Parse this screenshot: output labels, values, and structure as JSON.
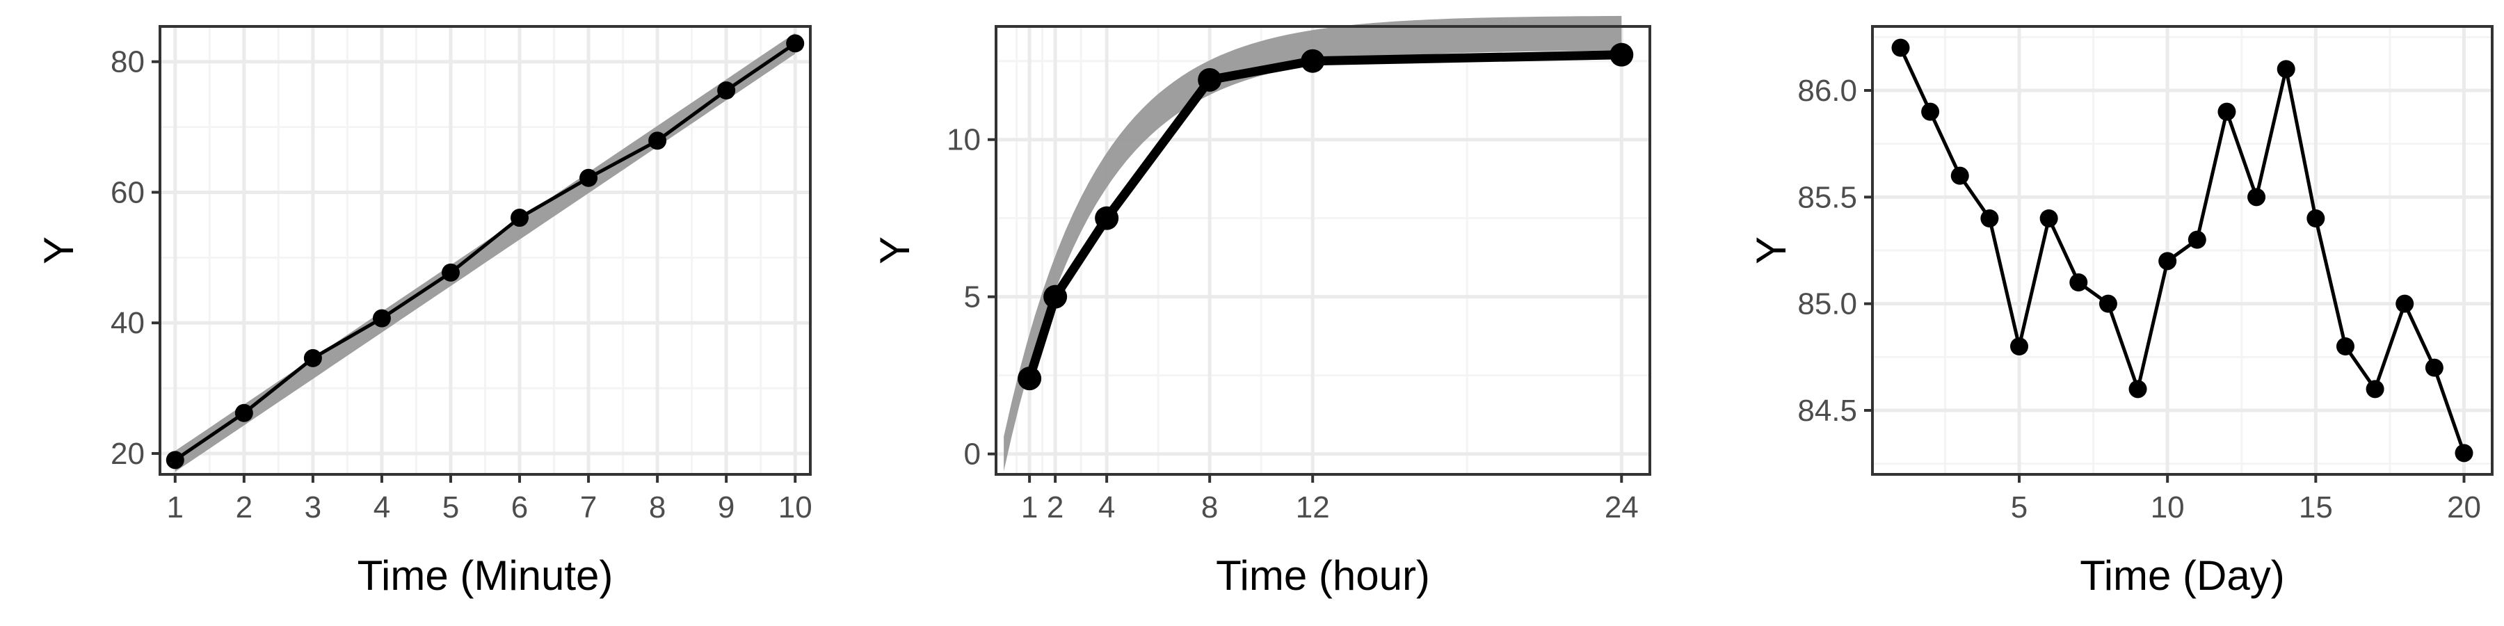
{
  "chart_data": [
    {
      "type": "line",
      "xlabel": "Time (Minute)",
      "ylabel": "Y",
      "xlim": [
        0.78,
        10.22
      ],
      "ylim": [
        16.8,
        85.4
      ],
      "x_ticks": [
        1,
        2,
        3,
        4,
        5,
        6,
        7,
        8,
        9,
        10
      ],
      "x_tick_labels": [
        "1",
        "2",
        "3",
        "4",
        "5",
        "6",
        "7",
        "8",
        "9",
        "10"
      ],
      "y_ticks": [
        20,
        40,
        60,
        80
      ],
      "y_tick_labels": [
        "20",
        "40",
        "60",
        "80"
      ],
      "grid": true,
      "series": [
        {
          "x": [
            1,
            2,
            3,
            4,
            5,
            6,
            7,
            8,
            9,
            10
          ],
          "y": [
            19,
            26.2,
            34.6,
            40.7,
            47.7,
            56.1,
            62.2,
            67.9,
            75.6,
            82.8
          ]
        }
      ],
      "trend_band": {
        "x": [
          1,
          10
        ],
        "y_mid": [
          18.8,
          82.8
        ],
        "half_width": 1.6,
        "color": "#999999"
      },
      "colors": {
        "line": "#000000",
        "panel_border": "#333333",
        "grid_major": "#ebebeb",
        "grid_minor": "#f4f4f4"
      }
    },
    {
      "type": "line",
      "xlabel": "Time (hour)",
      "ylabel": "Y",
      "xlim": [
        -0.3,
        25.1
      ],
      "ylim": [
        -0.65,
        13.6
      ],
      "x_ticks": [
        1,
        2,
        4,
        8,
        12,
        24
      ],
      "x_tick_labels": [
        "1",
        "2",
        "4",
        "8",
        "12",
        "24"
      ],
      "y_ticks": [
        0,
        5,
        10
      ],
      "y_tick_labels": [
        "0",
        "5",
        "10"
      ],
      "grid": true,
      "series": [
        {
          "x": [
            1,
            2,
            4,
            8,
            12,
            24
          ],
          "y": [
            2.4,
            5,
            7.5,
            11.9,
            12.5,
            12.7
          ]
        }
      ],
      "trend_band": {
        "x": [
          0,
          24
        ],
        "model": "13.4 * (1 - exp(-0.28 * t))",
        "asymptote": 13.4,
        "rate": 0.28,
        "half_width": 0.55,
        "color": "#999999"
      },
      "colors": {
        "line": "#000000",
        "panel_border": "#333333",
        "grid_major": "#ebebeb",
        "grid_minor": "#f4f4f4"
      }
    },
    {
      "type": "line",
      "xlabel": "Time (Day)",
      "ylabel": "Y",
      "xlim": [
        0.05,
        20.95
      ],
      "ylim": [
        84.2,
        86.3
      ],
      "x_ticks": [
        5,
        10,
        15,
        20
      ],
      "x_tick_labels": [
        "5",
        "10",
        "15",
        "20"
      ],
      "y_ticks": [
        84.5,
        85,
        85.5,
        86
      ],
      "y_tick_labels": [
        "84.5",
        "85.0",
        "85.5",
        "86.0"
      ],
      "grid": true,
      "series": [
        {
          "x": [
            1,
            2,
            3,
            4,
            5,
            6,
            7,
            8,
            9,
            10,
            11,
            12,
            13,
            14,
            15,
            16,
            17,
            18,
            19,
            20
          ],
          "y": [
            86.2,
            85.9,
            85.6,
            85.4,
            84.8,
            85.4,
            85.1,
            85.0,
            84.6,
            85.2,
            85.3,
            85.9,
            85.5,
            86.1,
            85.4,
            84.8,
            84.6,
            85.0,
            84.7,
            84.3
          ]
        }
      ],
      "colors": {
        "line": "#000000",
        "panel_border": "#333333",
        "grid_major": "#ebebeb",
        "grid_minor": "#f4f4f4"
      }
    }
  ]
}
